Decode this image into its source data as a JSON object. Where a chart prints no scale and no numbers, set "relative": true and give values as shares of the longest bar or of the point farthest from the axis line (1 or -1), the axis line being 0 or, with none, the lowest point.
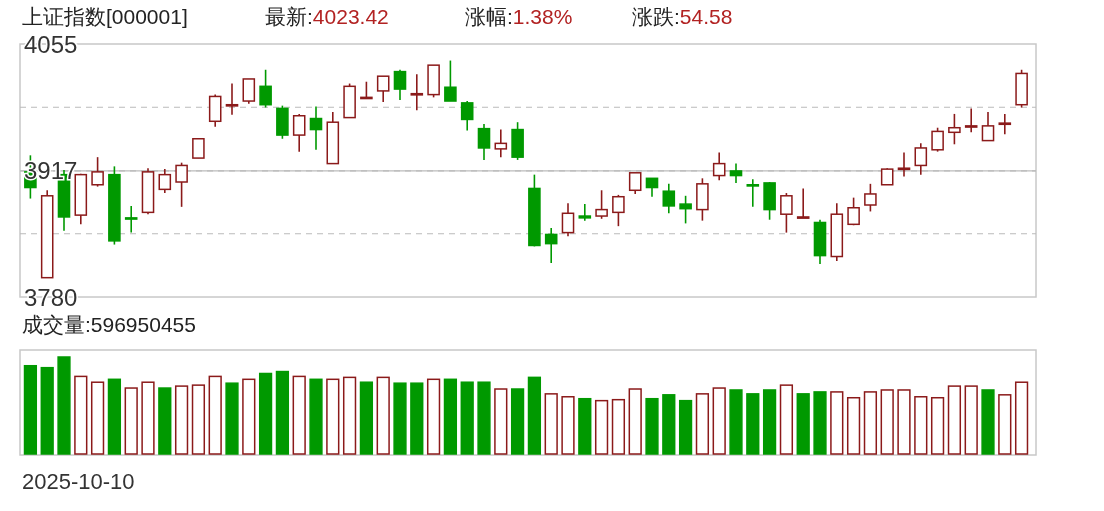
{
  "chart_data": [
    {
      "type": "candlestick",
      "title": "上证指数[000001]",
      "annotations": [
        "最新:4023.42",
        "涨幅:1.38%",
        "涨跌:54.58"
      ],
      "categories": [
        null,
        null,
        null,
        null,
        null,
        null,
        null,
        null,
        null,
        null,
        null,
        null,
        null,
        null,
        null,
        null,
        null,
        null,
        null,
        null,
        null,
        null,
        null,
        null,
        null,
        null,
        null,
        null,
        null,
        null,
        null,
        null,
        null,
        null,
        null,
        null,
        null,
        null,
        null,
        null,
        null,
        null,
        null,
        null,
        null,
        null,
        null,
        null,
        null,
        null,
        null,
        null,
        null,
        null,
        null,
        null,
        null,
        null,
        null,
        null
      ],
      "ohlc": [
        [
          3916,
          3934,
          3887,
          3899
        ],
        [
          3801,
          3896,
          3801,
          3890
        ],
        [
          3913,
          3918,
          3852,
          3867
        ],
        [
          3869,
          3914,
          3859,
          3913
        ],
        [
          3902,
          3932,
          3900,
          3916
        ],
        [
          3913,
          3922,
          3837,
          3841
        ],
        [
          3866,
          3879,
          3850,
          3865
        ],
        [
          3872,
          3920,
          3870,
          3916
        ],
        [
          3897,
          3919,
          3893,
          3913
        ],
        [
          3905,
          3926,
          3878,
          3923
        ],
        [
          3931,
          3952,
          3931,
          3952
        ],
        [
          3971,
          4000,
          3965,
          3998
        ],
        [
          3988,
          4012,
          3978,
          3989
        ],
        [
          3993,
          4017,
          3990,
          4017
        ],
        [
          4009,
          4027,
          3986,
          3989
        ],
        [
          3985,
          3988,
          3952,
          3956
        ],
        [
          3956,
          3979,
          3938,
          3977
        ],
        [
          3974,
          3987,
          3940,
          3962
        ],
        [
          3925,
          3981,
          3925,
          3970
        ],
        [
          3975,
          4012,
          3975,
          4009
        ],
        [
          3996,
          4014,
          3996,
          3997
        ],
        [
          4004,
          4020,
          3992,
          4020
        ],
        [
          4025,
          4027,
          3994,
          4006
        ],
        [
          4000,
          4022,
          3983,
          4001
        ],
        [
          4000,
          4032,
          3997,
          4032
        ],
        [
          4008,
          4037,
          3993,
          3993
        ],
        [
          3991,
          3993,
          3961,
          3973
        ],
        [
          3963,
          3968,
          3929,
          3942
        ],
        [
          3941,
          3962,
          3932,
          3947
        ],
        [
          3962,
          3970,
          3929,
          3932
        ],
        [
          3898,
          3913,
          3835,
          3836
        ],
        [
          3848,
          3855,
          3817,
          3838
        ],
        [
          3850,
          3882,
          3846,
          3871
        ],
        [
          3868,
          3881,
          3863,
          3866
        ],
        [
          3868,
          3896,
          3865,
          3875
        ],
        [
          3872,
          3891,
          3857,
          3889
        ],
        [
          3896,
          3915,
          3892,
          3915
        ],
        [
          3909,
          3909,
          3889,
          3899
        ],
        [
          3895,
          3903,
          3871,
          3879
        ],
        [
          3881,
          3890,
          3860,
          3876
        ],
        [
          3875,
          3909,
          3863,
          3903
        ],
        [
          3912,
          3937,
          3907,
          3925
        ],
        [
          3917,
          3925,
          3904,
          3912
        ],
        [
          3902,
          3908,
          3878,
          3901
        ],
        [
          3904,
          3905,
          3864,
          3875
        ],
        [
          3870,
          3893,
          3850,
          3890
        ],
        [
          3866,
          3898,
          3866,
          3867
        ],
        [
          3861,
          3864,
          3816,
          3825
        ],
        [
          3824,
          3882,
          3819,
          3870
        ],
        [
          3859,
          3888,
          3858,
          3877
        ],
        [
          3880,
          3903,
          3873,
          3892
        ],
        [
          3902,
          3920,
          3902,
          3919
        ],
        [
          3919,
          3937,
          3911,
          3920
        ],
        [
          3923,
          3947,
          3913,
          3942
        ],
        [
          3940,
          3964,
          3938,
          3960
        ],
        [
          3959,
          3979,
          3946,
          3964
        ],
        [
          3965,
          3985,
          3959,
          3966
        ],
        [
          3950,
          3981,
          3950,
          3966
        ],
        [
          3968,
          3979,
          3957,
          3969
        ],
        [
          3989,
          4027,
          3986,
          4023
        ]
      ],
      "colors": [
        "#009900",
        "#8b1a1a",
        "#009900",
        "#8b1a1a",
        "#8b1a1a",
        "#009900",
        "#009900",
        "#8b1a1a",
        "#8b1a1a",
        "#8b1a1a",
        "#8b1a1a",
        "#8b1a1a",
        "#8b1a1a",
        "#8b1a1a",
        "#009900",
        "#009900",
        "#8b1a1a",
        "#009900",
        "#8b1a1a",
        "#8b1a1a",
        "#8b1a1a",
        "#8b1a1a",
        "#009900",
        "#8b1a1a",
        "#8b1a1a",
        "#009900",
        "#009900",
        "#009900",
        "#8b1a1a",
        "#009900",
        "#009900",
        "#009900",
        "#8b1a1a",
        "#009900",
        "#8b1a1a",
        "#8b1a1a",
        "#8b1a1a",
        "#009900",
        "#009900",
        "#009900",
        "#8b1a1a",
        "#8b1a1a",
        "#009900",
        "#009900",
        "#009900",
        "#8b1a1a",
        "#8b1a1a",
        "#009900",
        "#8b1a1a",
        "#8b1a1a",
        "#8b1a1a",
        "#8b1a1a",
        "#8b1a1a",
        "#8b1a1a",
        "#8b1a1a",
        "#8b1a1a",
        "#8b1a1a",
        "#8b1a1a",
        "#8b1a1a",
        "#8b1a1a"
      ],
      "ylim": [
        3780,
        4055
      ],
      "yticks": [
        3780,
        {
          "value": 3848.75,
          "label": null
        },
        3917,
        {
          "value": 3986.25,
          "label": null
        },
        4055
      ],
      "ref_lines": [
        {
          "axis": "y",
          "value": 3917,
          "color": "#bbbbbb",
          "line_style": "solid"
        }
      ],
      "grid": "y",
      "tick_labels": "y"
    },
    {
      "type": "bar",
      "title": "成交量:596950455",
      "relative": true,
      "annotations": [
        "2025-10-10"
      ],
      "categories": [
        null,
        null,
        null,
        null,
        null,
        null,
        null,
        null,
        null,
        null,
        null,
        null,
        null,
        null,
        null,
        null,
        null,
        null,
        null,
        null,
        null,
        null,
        null,
        null,
        null,
        null,
        null,
        null,
        null,
        null,
        null,
        null,
        null,
        null,
        null,
        null,
        null,
        null,
        null,
        null,
        null,
        null,
        null,
        null,
        null,
        null,
        null,
        null,
        null,
        null,
        null,
        null,
        null,
        null,
        null,
        null,
        null,
        null,
        null,
        null
      ],
      "series": [
        {
          "color": "#8b1a1a",
          "values": [
            null,
            null,
            null,
            0.8,
            0.74,
            null,
            0.68,
            0.74,
            null,
            0.7,
            0.71,
            0.8,
            null,
            0.77,
            null,
            null,
            0.8,
            null,
            0.77,
            0.79,
            null,
            0.79,
            null,
            null,
            0.77,
            null,
            null,
            null,
            0.67,
            null,
            null,
            0.62,
            0.59,
            null,
            0.55,
            0.56,
            0.67,
            null,
            null,
            null,
            0.62,
            0.68,
            null,
            null,
            null,
            0.71,
            null,
            null,
            0.64,
            0.58,
            0.64,
            0.66,
            0.66,
            0.59,
            0.58,
            0.7,
            0.7,
            null,
            0.61,
            0.74
          ]
        },
        {
          "color": "#009900",
          "values": [
            0.91,
            0.89,
            1,
            null,
            null,
            0.77,
            null,
            null,
            0.68,
            null,
            null,
            null,
            0.73,
            null,
            0.83,
            0.85,
            null,
            0.77,
            null,
            null,
            0.74,
            null,
            0.73,
            0.73,
            null,
            0.77,
            0.74,
            0.74,
            null,
            0.67,
            0.79,
            null,
            null,
            0.57,
            null,
            null,
            null,
            0.57,
            0.61,
            0.55,
            null,
            null,
            0.66,
            0.62,
            0.66,
            null,
            0.62,
            0.64,
            null,
            null,
            null,
            null,
            null,
            null,
            null,
            null,
            null,
            0.66,
            null,
            null
          ]
        }
      ]
    }
  ]
}
